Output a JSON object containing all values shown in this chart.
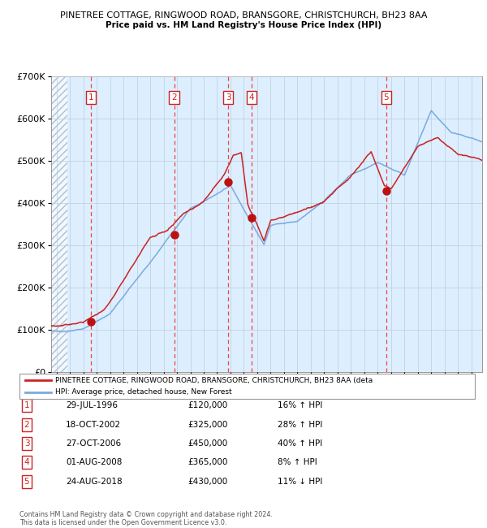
{
  "title1": "PINETREE COTTAGE, RINGWOOD ROAD, BRANSGORE, CHRISTCHURCH, BH23 8AA",
  "title2": "Price paid vs. HM Land Registry's House Price Index (HPI)",
  "ylim": [
    0,
    700000
  ],
  "yticks": [
    0,
    100000,
    200000,
    300000,
    400000,
    500000,
    600000,
    700000
  ],
  "ytick_labels": [
    "£0",
    "£100K",
    "£200K",
    "£300K",
    "£400K",
    "£500K",
    "£600K",
    "£700K"
  ],
  "xlim_start": 1993.6,
  "xlim_end": 2025.8,
  "sales": [
    {
      "num": 1,
      "year": 1996.57,
      "price": 120000
    },
    {
      "num": 2,
      "year": 2002.79,
      "price": 325000
    },
    {
      "num": 3,
      "year": 2006.82,
      "price": 450000
    },
    {
      "num": 4,
      "year": 2008.58,
      "price": 365000
    },
    {
      "num": 5,
      "year": 2018.64,
      "price": 430000
    }
  ],
  "legend_line1": "PINETREE COTTAGE, RINGWOOD ROAD, BRANSGORE, CHRISTCHURCH, BH23 8AA (deta",
  "legend_line2": "HPI: Average price, detached house, New Forest",
  "table_rows": [
    [
      "1",
      "29-JUL-1996",
      "£120,000",
      "16% ↑ HPI"
    ],
    [
      "2",
      "18-OCT-2002",
      "£325,000",
      "28% ↑ HPI"
    ],
    [
      "3",
      "27-OCT-2006",
      "£450,000",
      "40% ↑ HPI"
    ],
    [
      "4",
      "01-AUG-2008",
      "£365,000",
      "8% ↑ HPI"
    ],
    [
      "5",
      "24-AUG-2018",
      "£430,000",
      "11% ↓ HPI"
    ]
  ],
  "footer": "Contains HM Land Registry data © Crown copyright and database right 2024.\nThis data is licensed under the Open Government Licence v3.0.",
  "hpi_color": "#7aaadd",
  "price_color": "#cc2222",
  "sale_dot_color": "#bb1111",
  "dashed_line_color": "#ee4444",
  "bg_color": "#ddeeff",
  "grid_color": "#bbccdd",
  "box_color": "#cc2222"
}
